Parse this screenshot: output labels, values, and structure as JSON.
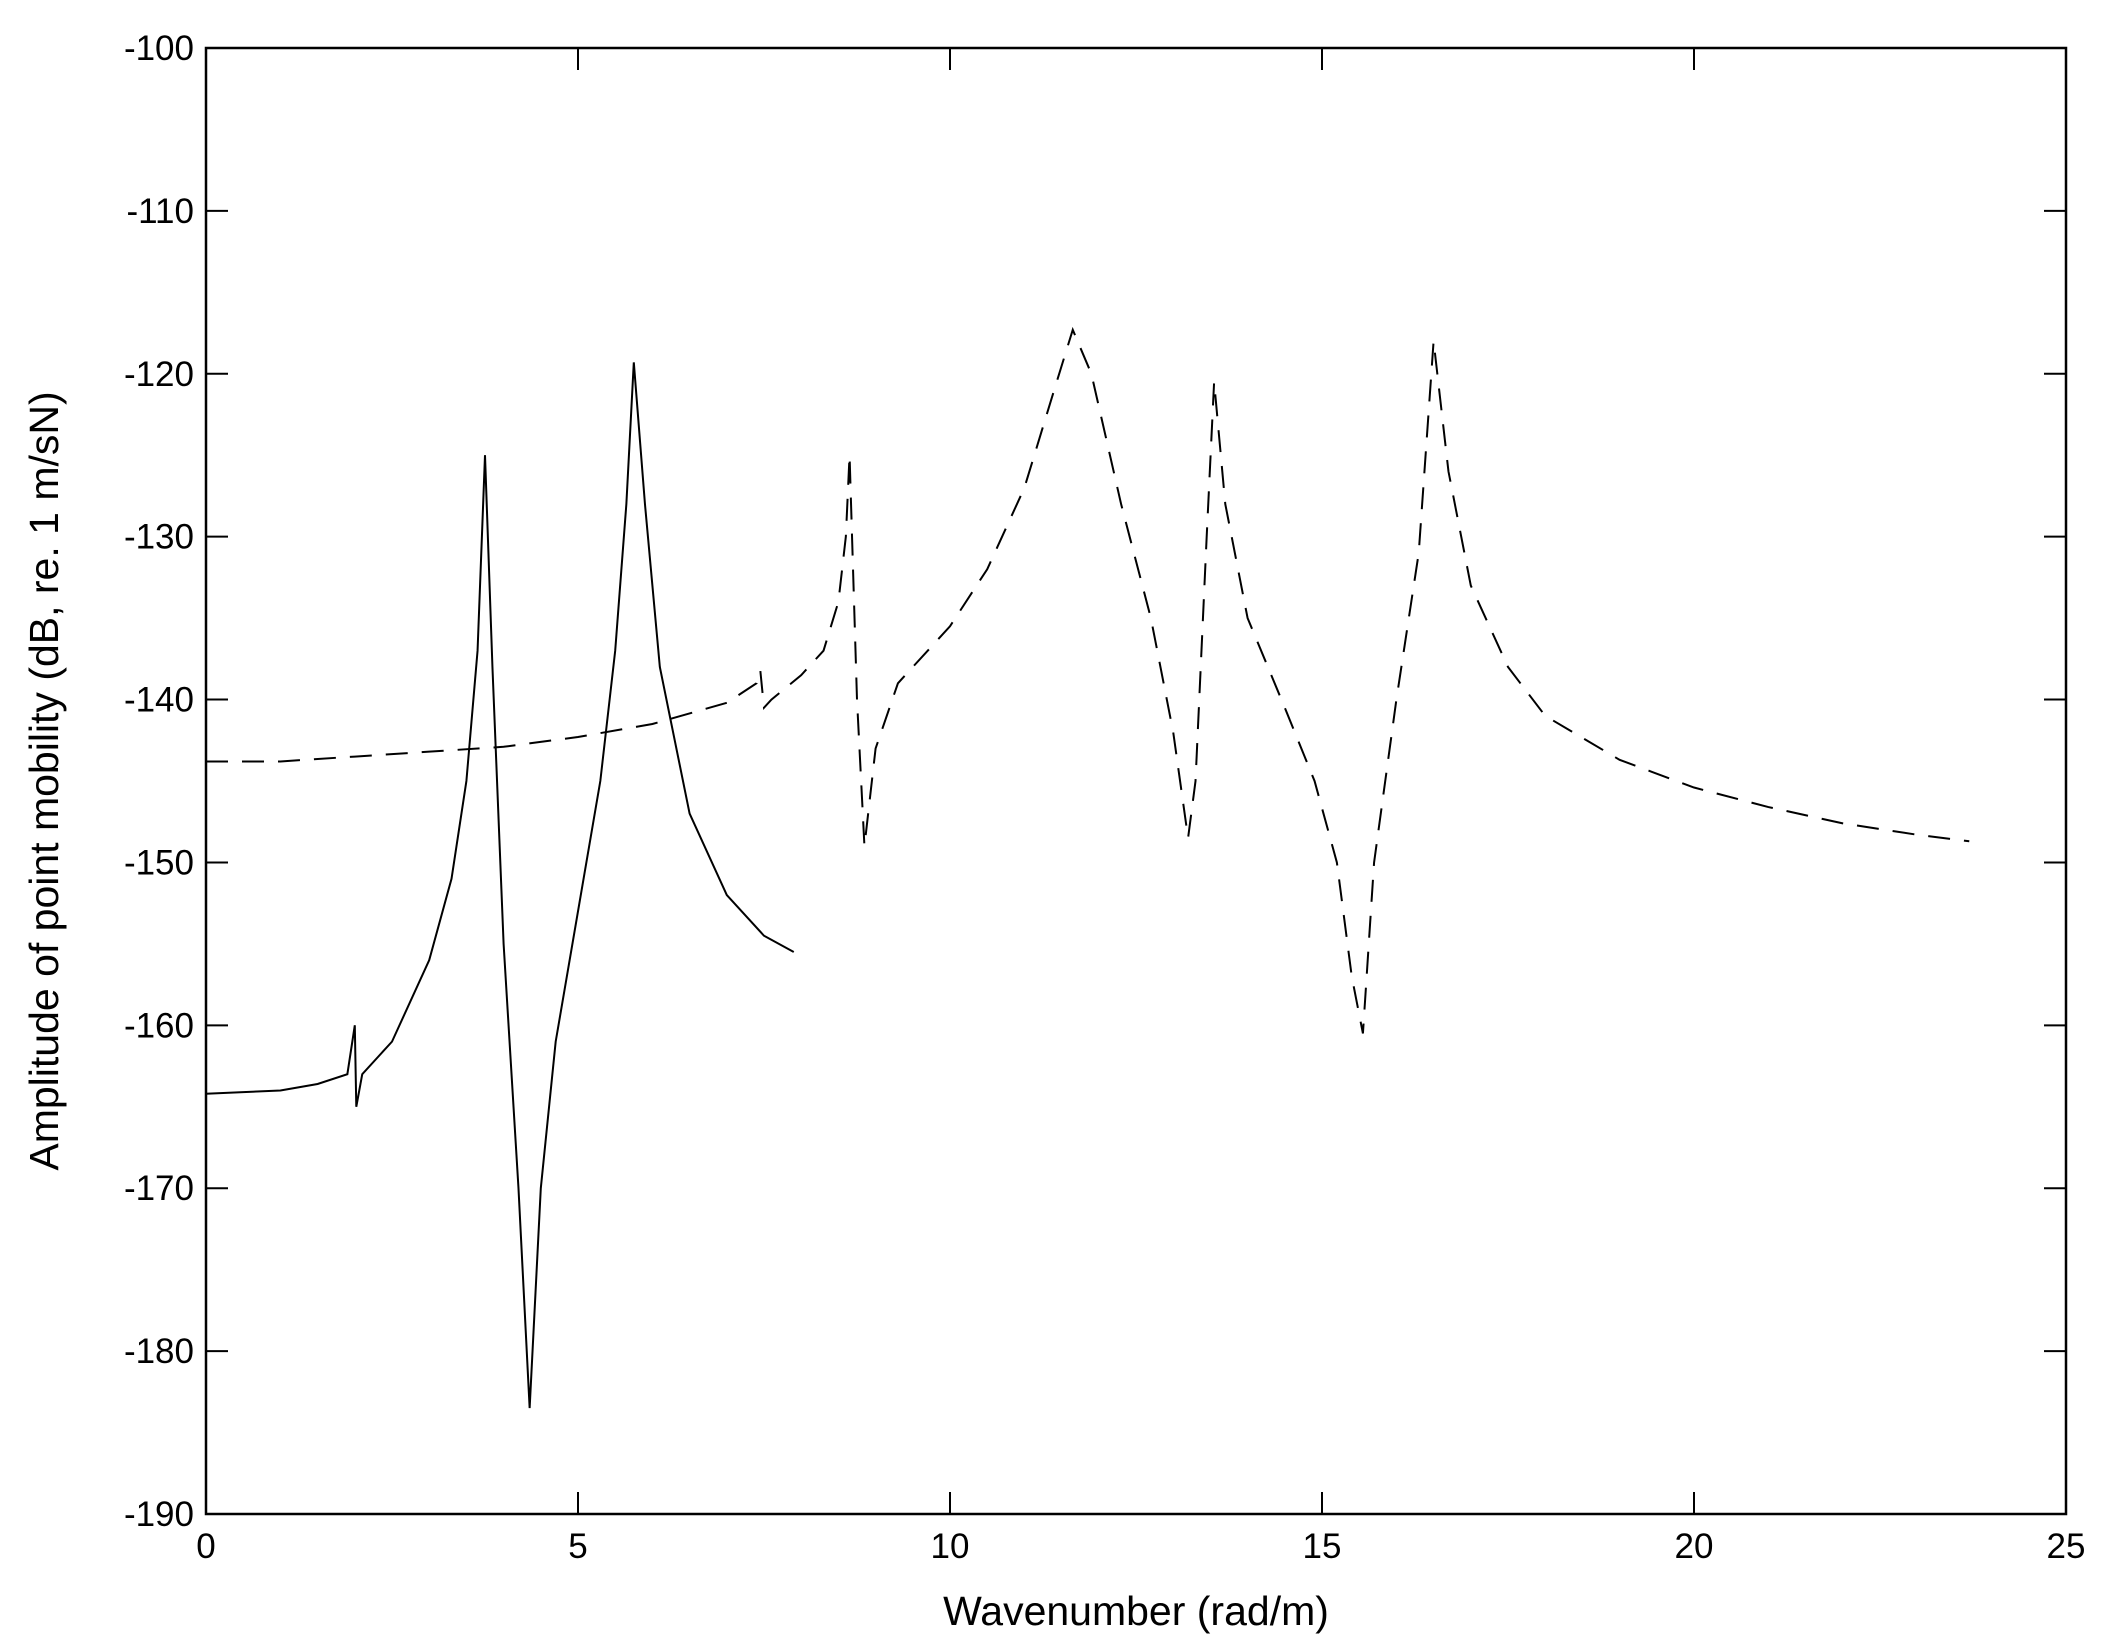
{
  "chart_data": {
    "type": "line",
    "x_label": "Wavenumber (rad/m)",
    "y_label": "Amplitude of point mobility (dB, re. 1 m/sN)",
    "xlim": [
      0,
      25
    ],
    "xticks": [
      0,
      5,
      10,
      15,
      20,
      25
    ],
    "ylim": [
      -190,
      -100
    ],
    "yticks": [
      -190,
      -180,
      -170,
      -160,
      -150,
      -140,
      -130,
      -120,
      -110,
      -100
    ],
    "grid": false,
    "series": [
      {
        "color": "#000000",
        "linestyle": "solid",
        "x": [
          0,
          0.5,
          1,
          1.5,
          1.9,
          2.0,
          2.02,
          2.1,
          2.5,
          3.0,
          3.3,
          3.5,
          3.65,
          3.75,
          3.85,
          4.0,
          4.2,
          4.35,
          4.5,
          4.7,
          5.0,
          5.3,
          5.5,
          5.65,
          5.75,
          5.9,
          6.1,
          6.5,
          7.0,
          7.5,
          7.9
        ],
        "values": [
          -164.2,
          -164.1,
          -164,
          -163.6,
          -163,
          -160,
          -165,
          -163,
          -161,
          -156,
          -151,
          -145,
          -137,
          -125,
          -138,
          -155,
          -170,
          -183.5,
          -170,
          -161,
          -153,
          -145,
          -137,
          -128,
          -119.3,
          -128,
          -138,
          -147,
          -152,
          -154.5,
          -155.5
        ]
      },
      {
        "color": "#000000",
        "linestyle": "dashed",
        "x": [
          0,
          1,
          2,
          3,
          4,
          5,
          6,
          7,
          7.4,
          7.45,
          7.5,
          7.6,
          8,
          8.3,
          8.5,
          8.6,
          8.65,
          8.75,
          8.85,
          9.0,
          9.3,
          10,
          10.5,
          11,
          11.4,
          11.65,
          11.9,
          12.3,
          12.7,
          13.0,
          13.2,
          13.3,
          13.45,
          13.55,
          13.7,
          14,
          14.5,
          14.9,
          15.2,
          15.4,
          15.55,
          15.7,
          16,
          16.3,
          16.5,
          16.7,
          17,
          17.5,
          18,
          19,
          20,
          21,
          22,
          23,
          23.7
        ],
        "values": [
          -143.8,
          -143.8,
          -143.5,
          -143.2,
          -142.9,
          -142.3,
          -141.5,
          -140.2,
          -139,
          -138.2,
          -140.5,
          -140,
          -138.5,
          -137,
          -134,
          -130,
          -125,
          -140,
          -149,
          -143,
          -139,
          -135.5,
          -132,
          -127,
          -121,
          -117.3,
          -120,
          -128,
          -135,
          -142,
          -148.5,
          -145,
          -130,
          -120.5,
          -128,
          -135,
          -140.5,
          -145,
          -150,
          -157,
          -160.5,
          -150,
          -140,
          -131,
          -118,
          -126,
          -133,
          -138,
          -141,
          -143.7,
          -145.4,
          -146.6,
          -147.6,
          -148.3,
          -148.7
        ]
      }
    ]
  }
}
